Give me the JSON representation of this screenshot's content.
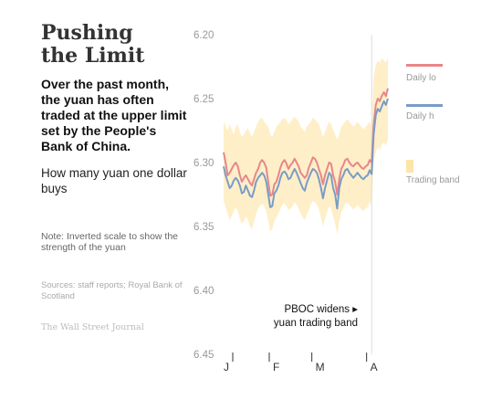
{
  "header": {
    "title_line1": "Pushing",
    "title_line2": "the Limit",
    "description": "Over the past month, the yuan has often traded at the upper limit set by the People's Bank of China.",
    "unit_label": "How many yuan one dollar buys",
    "note": "Note: Inverted scale to show the strength of the yuan",
    "sources": "Sources: staff reports; Royal Bank of Scotland",
    "publisher": "The Wall Street Journal"
  },
  "legend": [
    {
      "label": "Daily lo",
      "color": "#e8868a"
    },
    {
      "label": "Daily h",
      "color": "#7a9cc6"
    },
    {
      "label": "Trading band",
      "color": "#fde4a8"
    }
  ],
  "chart_data": {
    "type": "line",
    "title": "",
    "xlabel": "",
    "ylabel": "",
    "y_inverted": true,
    "ylim": [
      6.45,
      6.2
    ],
    "y_ticks": [
      6.2,
      6.25,
      6.3,
      6.35,
      6.4,
      6.45
    ],
    "y_tick_labels": [
      "6.20",
      "6.25",
      "6.30",
      "6.35",
      "6.40",
      "6.45"
    ],
    "x_tick_labels": [
      "J",
      "F",
      "M",
      "A"
    ],
    "x": [
      1,
      2,
      3,
      4,
      5,
      6,
      7,
      8,
      9,
      10,
      11,
      12,
      13,
      14,
      15,
      16,
      17,
      18,
      19,
      20,
      21,
      22,
      23,
      24,
      25,
      26,
      27,
      28,
      29,
      30,
      31,
      32,
      33,
      34,
      35,
      36,
      37,
      38,
      39,
      40,
      41,
      42,
      43,
      44,
      45,
      46,
      47,
      48,
      49,
      50,
      51,
      52,
      53,
      54,
      55,
      56,
      57,
      58,
      59,
      60,
      61,
      62,
      63,
      64,
      65,
      66,
      67,
      68,
      69,
      70,
      71,
      72,
      73,
      74,
      75,
      76,
      77,
      78,
      79,
      80,
      81,
      82
    ],
    "series": [
      {
        "name": "Daily low",
        "color": "#e8868a",
        "values": [
          6.292,
          6.3,
          6.31,
          6.308,
          6.305,
          6.302,
          6.3,
          6.303,
          6.31,
          6.315,
          6.312,
          6.31,
          6.313,
          6.316,
          6.318,
          6.313,
          6.308,
          6.305,
          6.3,
          6.298,
          6.3,
          6.304,
          6.315,
          6.326,
          6.325,
          6.317,
          6.315,
          6.31,
          6.304,
          6.3,
          6.298,
          6.301,
          6.305,
          6.302,
          6.3,
          6.297,
          6.3,
          6.303,
          6.308,
          6.31,
          6.312,
          6.31,
          6.304,
          6.3,
          6.296,
          6.297,
          6.3,
          6.305,
          6.31,
          6.317,
          6.31,
          6.305,
          6.3,
          6.301,
          6.31,
          6.315,
          6.325,
          6.313,
          6.305,
          6.302,
          6.298,
          6.297,
          6.3,
          6.302,
          6.303,
          6.301,
          6.3,
          6.302,
          6.304,
          6.305,
          6.303,
          6.302,
          6.298,
          6.3,
          6.27,
          6.255,
          6.25,
          6.252,
          6.248,
          6.245,
          6.248,
          6.242
        ]
      },
      {
        "name": "Daily high",
        "color": "#7a9cc6",
        "values": [
          6.303,
          6.31,
          6.315,
          6.32,
          6.318,
          6.314,
          6.312,
          6.314,
          6.318,
          6.324,
          6.323,
          6.318,
          6.322,
          6.326,
          6.327,
          6.322,
          6.315,
          6.312,
          6.31,
          6.308,
          6.31,
          6.315,
          6.325,
          6.335,
          6.334,
          6.324,
          6.322,
          6.318,
          6.312,
          6.308,
          6.307,
          6.309,
          6.313,
          6.312,
          6.308,
          6.305,
          6.308,
          6.312,
          6.316,
          6.32,
          6.322,
          6.316,
          6.312,
          6.308,
          6.305,
          6.306,
          6.308,
          6.313,
          6.32,
          6.328,
          6.32,
          6.314,
          6.308,
          6.31,
          6.32,
          6.325,
          6.336,
          6.32,
          6.313,
          6.31,
          6.306,
          6.305,
          6.308,
          6.31,
          6.312,
          6.31,
          6.308,
          6.31,
          6.312,
          6.313,
          6.311,
          6.31,
          6.306,
          6.309,
          6.278,
          6.263,
          6.258,
          6.26,
          6.256,
          6.252,
          6.255,
          6.25
        ]
      },
      {
        "name": "Trading band upper",
        "color": "#fde4a8",
        "values": [
          6.268,
          6.272,
          6.275,
          6.27,
          6.274,
          6.278,
          6.272,
          6.27,
          6.276,
          6.28,
          6.278,
          6.275,
          6.273,
          6.277,
          6.28,
          6.276,
          6.272,
          6.268,
          6.266,
          6.265,
          6.268,
          6.27,
          6.272,
          6.278,
          6.28,
          6.276,
          6.272,
          6.27,
          6.268,
          6.266,
          6.265,
          6.267,
          6.27,
          6.268,
          6.266,
          6.264,
          6.266,
          6.268,
          6.272,
          6.274,
          6.276,
          6.272,
          6.27,
          6.268,
          6.265,
          6.266,
          6.268,
          6.27,
          6.275,
          6.28,
          6.276,
          6.272,
          6.268,
          6.27,
          6.274,
          6.278,
          6.282,
          6.278,
          6.272,
          6.27,
          6.268,
          6.266,
          6.268,
          6.27,
          6.272,
          6.27,
          6.268,
          6.27,
          6.272,
          6.274,
          6.272,
          6.27,
          6.268,
          6.272,
          6.232,
          6.224,
          6.22,
          6.222,
          6.218,
          6.22,
          6.222,
          6.218
        ]
      },
      {
        "name": "Trading band lower",
        "color": "#fde4a8",
        "values": [
          6.33,
          6.335,
          6.34,
          6.345,
          6.342,
          6.338,
          6.335,
          6.338,
          6.344,
          6.348,
          6.346,
          6.342,
          6.345,
          6.35,
          6.352,
          6.346,
          6.34,
          6.336,
          6.334,
          6.332,
          6.334,
          6.338,
          6.346,
          6.354,
          6.352,
          6.346,
          6.343,
          6.34,
          6.336,
          6.333,
          6.332,
          6.334,
          6.337,
          6.336,
          6.334,
          6.331,
          6.333,
          6.336,
          6.34,
          6.343,
          6.345,
          6.341,
          6.337,
          6.333,
          6.33,
          6.331,
          6.333,
          6.337,
          6.343,
          6.35,
          6.344,
          6.339,
          6.334,
          6.336,
          6.342,
          6.348,
          6.356,
          6.346,
          6.339,
          6.336,
          6.332,
          6.331,
          6.333,
          6.335,
          6.337,
          6.335,
          6.333,
          6.335,
          6.337,
          6.338,
          6.336,
          6.335,
          6.331,
          6.334,
          6.3,
          6.292,
          6.288,
          6.29,
          6.286,
          6.284,
          6.287,
          6.282
        ]
      }
    ],
    "x_tick_positions": [
      1,
      19,
      40,
      67
    ],
    "annotation": {
      "text_line1": "PBOC widens ▸",
      "text_line2": "yuan trading band",
      "x": 74
    }
  }
}
